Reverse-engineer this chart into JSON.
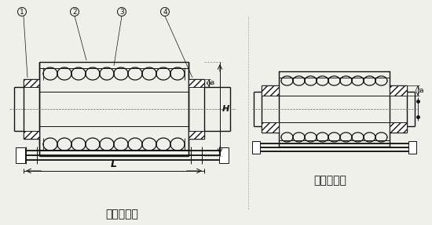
{
  "bg_color": "#f0f0eb",
  "line_color": "#111111",
  "title_left": "法兰连接式",
  "title_right": "接管连接式",
  "dim_L": "L",
  "dim_H": "H",
  "dim_a": "a",
  "font_size_title": 10,
  "font_size_label": 7
}
